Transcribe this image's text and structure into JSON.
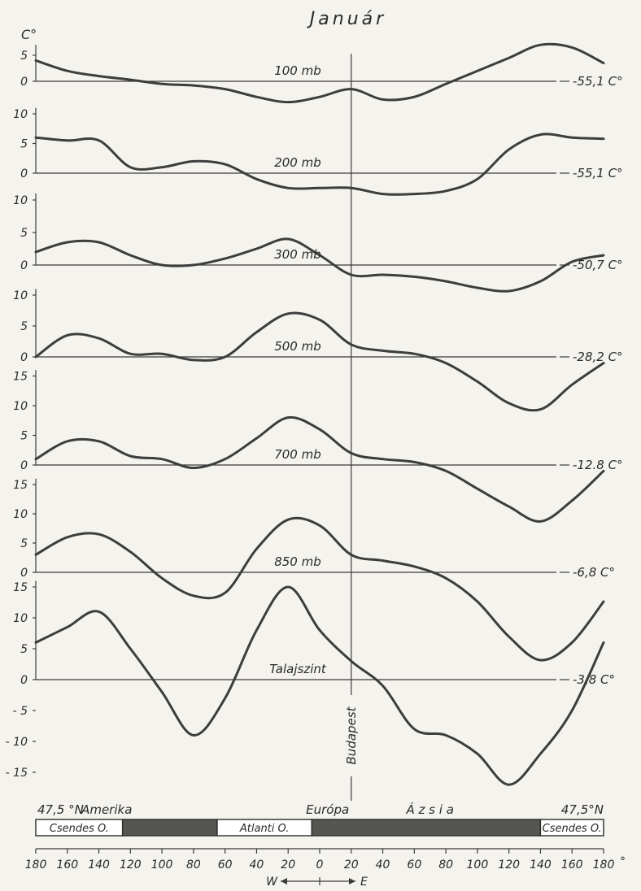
{
  "chart_data": {
    "type": "line",
    "title": "Január",
    "y_unit": "C°",
    "x_ticks": [
      "180",
      "160",
      "140",
      "120",
      "100",
      "80",
      "60",
      "40",
      "20",
      "0",
      "20",
      "40",
      "60",
      "80",
      "100",
      "120",
      "140",
      "160",
      "180"
    ],
    "x_unit": "°",
    "direction_west": "W",
    "direction_east": "E",
    "meridian_label": "Budapest",
    "lat_left": "47,5 °N",
    "lat_right": "47,5°N",
    "region_labels": [
      {
        "text": "Amerika",
        "lon": -135
      },
      {
        "text": "Európa",
        "lon": 5
      },
      {
        "text": "Á z s i a",
        "lon": 70
      }
    ],
    "ocean_bar": [
      {
        "name": "Csendes O.",
        "from": -180,
        "to": -125,
        "kind": "ocean"
      },
      {
        "name": "",
        "from": -125,
        "to": -65,
        "kind": "land"
      },
      {
        "name": "Atlanti O.",
        "from": -65,
        "to": -5,
        "kind": "ocean"
      },
      {
        "name": "",
        "from": -5,
        "to": 140,
        "kind": "land"
      },
      {
        "name": "Csendes O.",
        "from": 140,
        "to": 180,
        "kind": "ocean"
      }
    ],
    "panels": [
      {
        "label": "100 mb",
        "ref_value": "-55,1 C°",
        "ticks": [
          0,
          5
        ],
        "y_top": 7,
        "x": [
          -180,
          -160,
          -140,
          -120,
          -100,
          -80,
          -60,
          -40,
          -20,
          0,
          20,
          40,
          60,
          80,
          100,
          120,
          140,
          160,
          180
        ],
        "values": [
          4,
          2,
          1,
          0.3,
          -0.5,
          -0.8,
          -1.5,
          -3,
          -4,
          -3,
          -1.5,
          -3.5,
          -3,
          -0.5,
          2,
          4.5,
          7,
          6.5,
          3.5
        ]
      },
      {
        "label": "200 mb",
        "ref_value": "-55,1 C°",
        "ticks": [
          0,
          5,
          10
        ],
        "y_top": 11,
        "x": [
          -180,
          -160,
          -140,
          -120,
          -100,
          -80,
          -60,
          -40,
          -20,
          0,
          20,
          40,
          60,
          80,
          100,
          120,
          140,
          160,
          180
        ],
        "values": [
          6,
          5.5,
          5.5,
          1,
          1,
          2,
          1.5,
          -1,
          -2.5,
          -2.5,
          -2.5,
          -3.5,
          -3.5,
          -3,
          -1,
          4,
          6.5,
          6,
          5.8
        ]
      },
      {
        "label": "300 mb",
        "ref_value": "-50,7 C°",
        "ticks": [
          0,
          5,
          10
        ],
        "y_top": 11,
        "x": [
          -180,
          -160,
          -140,
          -120,
          -100,
          -80,
          -60,
          -40,
          -20,
          0,
          20,
          40,
          60,
          80,
          100,
          120,
          140,
          160,
          180
        ],
        "values": [
          2,
          3.5,
          3.5,
          1.5,
          0,
          0,
          1,
          2.5,
          4,
          1.5,
          -1.5,
          -1.5,
          -1.8,
          -2.5,
          -3.5,
          -4,
          -2.5,
          0.5,
          1.5
        ]
      },
      {
        "label": "500 mb",
        "ref_value": "-28,2 C°",
        "ticks": [
          0,
          5,
          10
        ],
        "y_top": 11,
        "x": [
          -180,
          -160,
          -140,
          -120,
          -100,
          -80,
          -60,
          -40,
          -20,
          0,
          20,
          40,
          60,
          80,
          100,
          120,
          140,
          160,
          180
        ],
        "values": [
          0,
          3.5,
          3,
          0.5,
          0.5,
          -0.5,
          0,
          4,
          7,
          6,
          2,
          1,
          0.5,
          -1,
          -4,
          -7.5,
          -8.5,
          -4.5,
          -1
        ]
      },
      {
        "label": "700 mb",
        "ref_value": "-12.8 C°",
        "ticks": [
          0,
          5,
          10,
          15
        ],
        "y_top": 16,
        "x": [
          -180,
          -160,
          -140,
          -120,
          -100,
          -80,
          -60,
          -40,
          -20,
          0,
          20,
          40,
          60,
          80,
          100,
          120,
          140,
          160,
          180
        ],
        "values": [
          1,
          4,
          4,
          1.5,
          1,
          -0.5,
          1,
          4.5,
          8,
          6,
          2,
          1,
          0.5,
          -1,
          -4,
          -7,
          -9.5,
          -6,
          -1
        ]
      },
      {
        "label": "850 mb",
        "ref_value": "-6,8 C°",
        "ticks": [
          0,
          5,
          10,
          15
        ],
        "y_top": 16,
        "x": [
          -180,
          -160,
          -140,
          -120,
          -100,
          -80,
          -60,
          -40,
          -20,
          0,
          20,
          40,
          60,
          80,
          100,
          120,
          140,
          160,
          180
        ],
        "values": [
          3,
          6,
          6.5,
          3.5,
          -1,
          -4,
          -3.5,
          4,
          9,
          8,
          3,
          2,
          1,
          -1,
          -5,
          -11,
          -15,
          -12,
          -5
        ]
      },
      {
        "label": "Talajszint",
        "ref_value": "-3,8 C°",
        "ticks": [
          -15,
          -10,
          -5,
          0,
          5,
          10,
          15
        ],
        "y_top": 16,
        "x": [
          -180,
          -160,
          -140,
          -120,
          -100,
          -80,
          -60,
          -40,
          -20,
          0,
          20,
          40,
          60,
          80,
          100,
          120,
          140,
          160,
          180
        ],
        "values": [
          6,
          8.5,
          11,
          5,
          -2,
          -9,
          -3,
          8,
          15,
          8,
          3,
          -1,
          -8,
          -9,
          -12,
          -17,
          -12,
          -5,
          6
        ]
      }
    ]
  }
}
